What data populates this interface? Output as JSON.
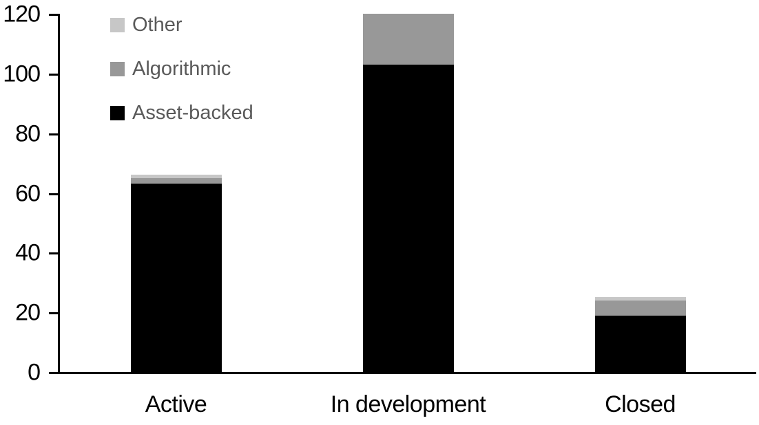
{
  "chart_data": {
    "type": "bar",
    "stacked": true,
    "title": "",
    "xlabel": "",
    "ylabel": "",
    "categories": [
      "Active",
      "In development",
      "Closed"
    ],
    "series": [
      {
        "name": "Asset-backed",
        "color": "#000000",
        "values": [
          63,
          103,
          19
        ]
      },
      {
        "name": "Algorithmic",
        "color": "#989898",
        "values": [
          2,
          17,
          5
        ]
      },
      {
        "name": "Other",
        "color": "#c7c7c7",
        "values": [
          1,
          0,
          1
        ]
      }
    ],
    "stack_totals": [
      66,
      120,
      25
    ],
    "ylim": [
      0,
      120
    ],
    "yticks": [
      0,
      20,
      40,
      60,
      80,
      100,
      120
    ],
    "grid": false,
    "legend": {
      "position": "top-left-inside",
      "order": [
        "Other",
        "Algorithmic",
        "Asset-backed"
      ],
      "text_color": "#595959"
    },
    "axis_color": "#000000",
    "background_color": "#ffffff"
  }
}
